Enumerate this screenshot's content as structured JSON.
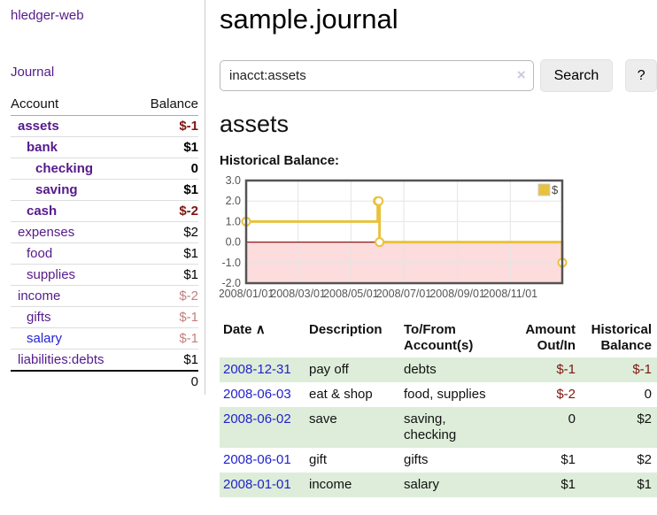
{
  "app": {
    "brand": "hledger-web",
    "nav_journal": "Journal"
  },
  "colors": {
    "link_purple": "#551a8b",
    "link_blue": "#2222cc",
    "negative_strong": "#7f1510",
    "negative_soft": "#c47f7f",
    "row_stripe_green": "#ddedd9"
  },
  "sidebar": {
    "header": {
      "account": "Account",
      "balance": "Balance"
    },
    "accounts": [
      {
        "name": "assets",
        "indent": 1,
        "bold": true,
        "balance": "$-1",
        "balance_style": "neg-strong"
      },
      {
        "name": "bank",
        "indent": 2,
        "bold": true,
        "balance": "$1",
        "balance_style": "pos"
      },
      {
        "name": "checking",
        "indent": 3,
        "bold": true,
        "balance": "0",
        "balance_style": "pos"
      },
      {
        "name": "saving",
        "indent": 3,
        "bold": true,
        "balance": "$1",
        "balance_style": "pos"
      },
      {
        "name": "cash",
        "indent": 2,
        "bold": true,
        "balance": "$-2",
        "balance_style": "neg-strong"
      },
      {
        "name": "expenses",
        "indent": 1,
        "bold": false,
        "balance": "$2",
        "balance_style": "pos"
      },
      {
        "name": "food",
        "indent": 2,
        "bold": false,
        "balance": "$1",
        "balance_style": "pos"
      },
      {
        "name": "supplies",
        "indent": 2,
        "bold": false,
        "balance": "$1",
        "balance_style": "pos"
      },
      {
        "name": "income",
        "indent": 1,
        "bold": false,
        "balance": "$-2",
        "balance_style": "neg-soft"
      },
      {
        "name": "gifts",
        "indent": 2,
        "bold": false,
        "balance": "$-1",
        "balance_style": "neg-soft"
      },
      {
        "name": "salary",
        "indent": 2,
        "bold": false,
        "link_style": "unvisited",
        "balance": "$-1",
        "balance_style": "neg-soft"
      },
      {
        "name": "liabilities:debts",
        "indent": 1,
        "bold": false,
        "balance": "$1",
        "balance_style": "pos"
      }
    ],
    "total": "0"
  },
  "header": {
    "title": "sample.journal"
  },
  "search": {
    "value": "inacct:assets",
    "clear_icon": "×",
    "button": "Search",
    "help_button": "?"
  },
  "account_page": {
    "title": "assets",
    "chart_label": "Historical Balance:"
  },
  "chart_data": {
    "type": "line",
    "step": true,
    "title": "Historical Balance:",
    "series": [
      {
        "name": "$",
        "color": "#e9c23d",
        "points": [
          [
            "2008-01-01",
            1
          ],
          [
            "2008-06-01",
            2
          ],
          [
            "2008-06-02",
            2
          ],
          [
            "2008-06-03",
            0
          ],
          [
            "2008-12-31",
            -1
          ]
        ]
      }
    ],
    "ylim": [
      -2.0,
      3.0
    ],
    "yticks": [
      "3.0",
      "2.0",
      "1.0",
      "0.0",
      "-1.0",
      "-2.0"
    ],
    "xticks": [
      "2008/01/01",
      "2008/03/01",
      "2008/05/01",
      "2008/07/01",
      "2008/09/01",
      "2008/11/01"
    ],
    "legend": {
      "label": "$",
      "position": "top-right"
    },
    "negative_fill": "#fcdcdc",
    "zero_line_color": "#8b1a1a",
    "grid_color": "#e5e5e5",
    "border_color": "#545454",
    "axis_label_color": "#555555"
  },
  "register": {
    "columns": [
      "Date",
      "Description",
      "To/From Account(s)",
      "Amount Out/In",
      "Historical Balance"
    ],
    "sort_arrow": "∧",
    "rows": [
      {
        "date": "2008-12-31",
        "description": "pay off",
        "accounts": "debts",
        "amount": "$-1",
        "amount_neg": true,
        "balance": "$-1",
        "balance_neg": true
      },
      {
        "date": "2008-06-03",
        "description": "eat & shop",
        "accounts": "food, supplies",
        "amount": "$-2",
        "amount_neg": true,
        "balance": "0",
        "balance_neg": false
      },
      {
        "date": "2008-06-02",
        "description": "save",
        "accounts": "saving, checking",
        "amount": "0",
        "amount_neg": false,
        "balance": "$2",
        "balance_neg": false
      },
      {
        "date": "2008-06-01",
        "description": "gift",
        "accounts": "gifts",
        "amount": "$1",
        "amount_neg": false,
        "balance": "$2",
        "balance_neg": false
      },
      {
        "date": "2008-01-01",
        "description": "income",
        "accounts": "salary",
        "amount": "$1",
        "amount_neg": false,
        "balance": "$1",
        "balance_neg": false
      }
    ]
  }
}
